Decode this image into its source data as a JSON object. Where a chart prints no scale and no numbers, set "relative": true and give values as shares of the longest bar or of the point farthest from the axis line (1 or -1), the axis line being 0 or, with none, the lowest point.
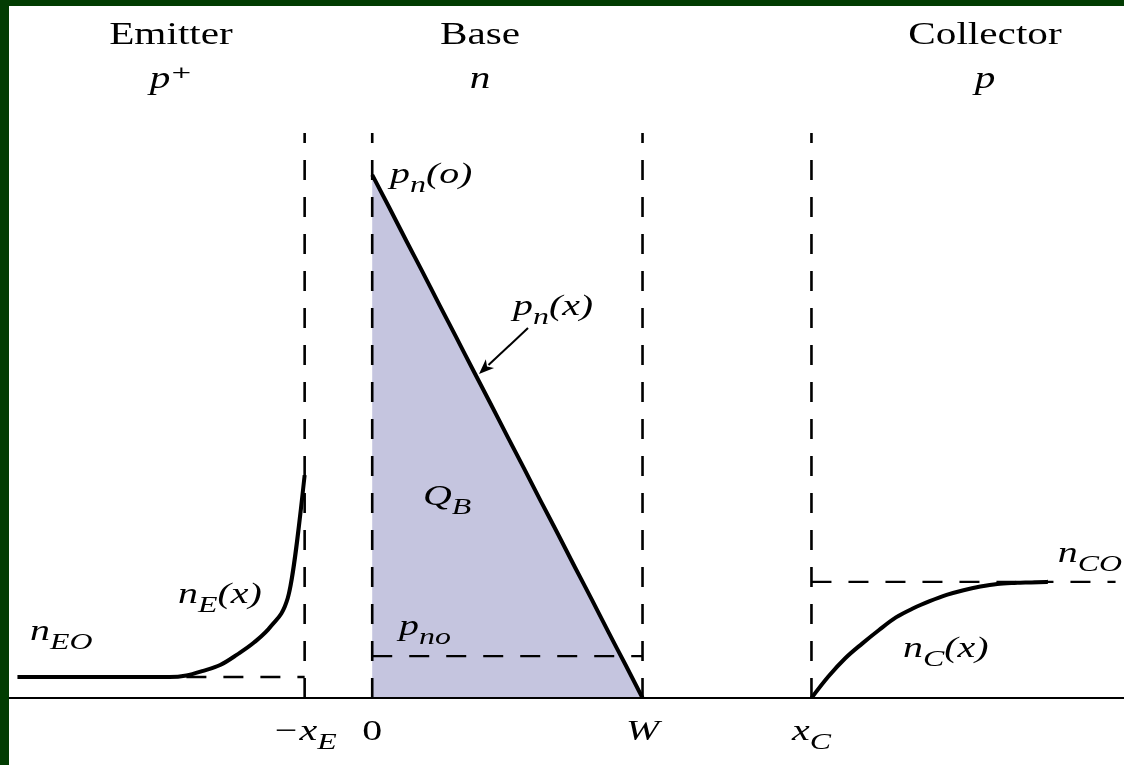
{
  "chart_data": {
    "type": "line",
    "relative": true,
    "tick_labels": "x",
    "categories": [
      null,
      null,
      null,
      null,
      null,
      null,
      null,
      null,
      null,
      null,
      null,
      null,
      null,
      null,
      null,
      null,
      null,
      "−x$_{E}$",
      null,
      null,
      null,
      "0",
      null,
      null,
      null,
      null,
      null,
      null,
      null,
      null,
      null,
      null,
      null,
      null,
      null,
      null,
      null,
      "W",
      null,
      null,
      null,
      null,
      null,
      null,
      null,
      null,
      null,
      "x$_{C}$",
      null,
      null,
      null,
      null,
      null,
      null,
      null,
      null,
      null,
      null,
      null,
      null,
      null,
      null,
      null,
      null,
      null,
      null
    ],
    "ref_lines": [
      {
        "axis": "x",
        "value": "−x$_{E}$",
        "color": "#000000",
        "line_style": "dashed"
      },
      {
        "axis": "x",
        "value": "0",
        "color": "#000000",
        "line_style": "dashed"
      },
      {
        "axis": "x",
        "value": "W",
        "color": "#000000",
        "line_style": "dashed"
      },
      {
        "axis": "x",
        "value": "x$_{C}$",
        "color": "#000000",
        "line_style": "dashed"
      }
    ],
    "series": [
      {
        "type": "area",
        "color": "#c5c5df",
        "values": [
          null,
          null,
          null,
          null,
          null,
          null,
          null,
          null,
          null,
          null,
          null,
          null,
          null,
          null,
          null,
          null,
          null,
          null,
          null,
          null,
          null,
          1,
          0.938,
          0.875,
          0.813,
          0.75,
          0.688,
          0.625,
          0.563,
          0.5,
          0.438,
          0.375,
          0.313,
          0.25,
          0.188,
          0.125,
          0.063,
          0,
          null,
          null,
          null,
          null,
          null,
          null,
          null,
          null,
          null,
          null,
          null,
          null,
          null,
          null,
          null,
          null,
          null,
          null,
          null,
          null,
          null,
          null,
          null,
          null,
          null,
          null,
          null,
          null
        ]
      },
      {
        "color": "#000000",
        "line_style": "dashed",
        "values": [
          null,
          null,
          null,
          null,
          null,
          null,
          null,
          null,
          null,
          null,
          0.04,
          0.04,
          0.04,
          0.04,
          0.04,
          0.04,
          0.04,
          0.04,
          null,
          null,
          null,
          null,
          null,
          null,
          null,
          null,
          null,
          null,
          null,
          null,
          null,
          null,
          null,
          null,
          null,
          null,
          null,
          null,
          null,
          null,
          null,
          null,
          null,
          null,
          null,
          null,
          null,
          null,
          null,
          null,
          null,
          null,
          null,
          null,
          null,
          null,
          null,
          null,
          null,
          null,
          null,
          null,
          null,
          null,
          null,
          null
        ]
      },
      {
        "color": "#000000",
        "line_style": "dashed",
        "values": [
          null,
          null,
          null,
          null,
          null,
          null,
          null,
          null,
          null,
          null,
          null,
          null,
          null,
          null,
          null,
          null,
          null,
          null,
          null,
          null,
          null,
          0.08,
          0.08,
          0.08,
          0.08,
          0.08,
          0.08,
          0.08,
          0.08,
          0.08,
          0.08,
          0.08,
          0.08,
          0.08,
          0.08,
          0.08,
          0.08,
          0.08,
          null,
          null,
          null,
          null,
          null,
          null,
          null,
          null,
          null,
          null,
          null,
          null,
          null,
          null,
          null,
          null,
          null,
          null,
          null,
          null,
          null,
          null,
          null,
          null,
          null,
          null,
          null,
          null
        ]
      },
      {
        "color": "#000000",
        "line_style": "dashed",
        "values": [
          null,
          null,
          null,
          null,
          null,
          null,
          null,
          null,
          null,
          null,
          null,
          null,
          null,
          null,
          null,
          null,
          null,
          null,
          null,
          null,
          null,
          null,
          null,
          null,
          null,
          null,
          null,
          null,
          null,
          null,
          null,
          null,
          null,
          null,
          null,
          null,
          null,
          null,
          null,
          null,
          null,
          null,
          null,
          null,
          null,
          null,
          null,
          0.222,
          0.222,
          0.222,
          0.222,
          0.222,
          0.222,
          0.222,
          0.222,
          0.222,
          0.222,
          0.222,
          0.222,
          0.222,
          0.222,
          0.222,
          0.222,
          0.222,
          0.222,
          0.222
        ]
      },
      {
        "color": "#000000",
        "values": [
          0.04,
          0.04,
          0.04,
          0.04,
          0.04,
          0.04,
          0.04,
          0.04,
          0.04,
          0.04,
          0.043,
          0.052,
          0.063,
          0.083,
          0.106,
          0.137,
          0.191,
          0.426,
          null,
          null,
          null,
          null,
          null,
          null,
          null,
          null,
          null,
          null,
          null,
          null,
          null,
          null,
          null,
          null,
          null,
          null,
          null,
          null,
          null,
          null,
          null,
          null,
          null,
          null,
          null,
          null,
          null,
          null,
          null,
          null,
          null,
          null,
          null,
          null,
          null,
          null,
          null,
          null,
          null,
          null,
          null,
          null,
          null,
          null,
          null,
          null
        ]
      },
      {
        "color": "#000000",
        "values": [
          null,
          null,
          null,
          null,
          null,
          null,
          null,
          null,
          null,
          null,
          null,
          null,
          null,
          null,
          null,
          null,
          null,
          null,
          null,
          null,
          null,
          null,
          null,
          null,
          null,
          null,
          null,
          null,
          null,
          null,
          null,
          null,
          null,
          null,
          null,
          null,
          null,
          null,
          null,
          null,
          null,
          null,
          null,
          null,
          null,
          null,
          null,
          0,
          0.041,
          0.076,
          0.104,
          0.13,
          0.154,
          0.171,
          0.185,
          0.197,
          0.206,
          0.213,
          0.218,
          0.22,
          0.221,
          0.222,
          null,
          null,
          null,
          null
        ]
      }
    ],
    "annotations": [
      "Emitter\np⁺",
      "Base\nn",
      "Collector\np",
      "p$_{n}$(o)",
      "p$_{n}$(x)",
      "Q$_{B}$",
      "n$_{E}$(x)",
      "n$_{EO}$",
      "p$_{no}$",
      "n$_{CO}$",
      "n$_{C}$(x)"
    ]
  }
}
